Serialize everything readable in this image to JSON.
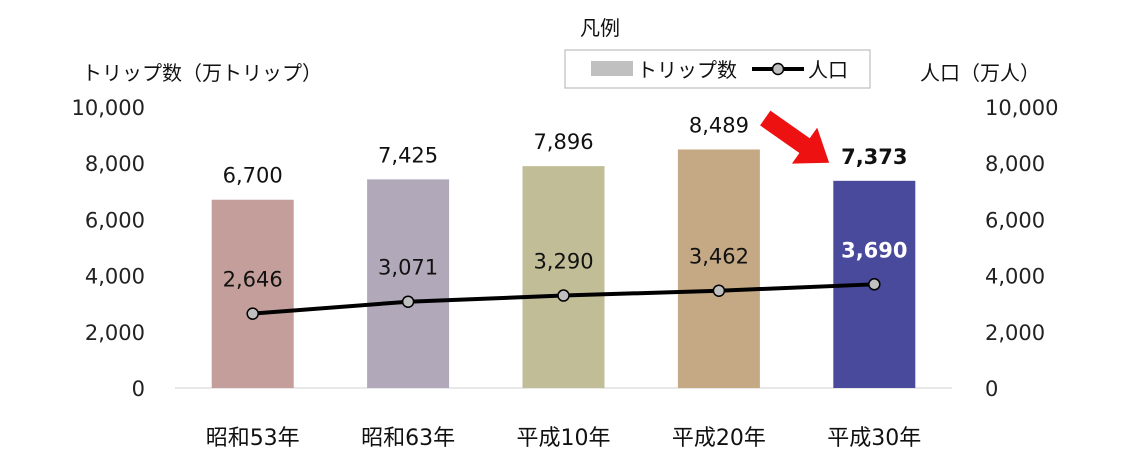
{
  "chart_data": {
    "type": "bar",
    "categories": [
      "昭和53年",
      "昭和63年",
      "平成10年",
      "平成20年",
      "平成30年"
    ],
    "series": [
      {
        "name": "トリップ数",
        "type": "bar",
        "axis": "left",
        "values": [
          6700,
          7425,
          7896,
          8489,
          7373
        ],
        "value_labels": [
          "6,700",
          "7,425",
          "7,896",
          "8,489",
          "7,373"
        ],
        "colors": [
          "#c49e9b",
          "#b1a9b9",
          "#c1be97",
          "#c5a984",
          "#4a4a9c"
        ]
      },
      {
        "name": "人口",
        "type": "line",
        "axis": "right",
        "values": [
          2646,
          3071,
          3290,
          3462,
          3690
        ],
        "value_labels": [
          "2,646",
          "3,071",
          "3,290",
          "3,462",
          "3,690"
        ],
        "color": "#000000"
      }
    ],
    "ylabel_left": "トリップ数（万トリップ）",
    "ylabel_right": "人口（万人）",
    "ylim_left": [
      0,
      10000
    ],
    "ylim_right": [
      0,
      10000
    ],
    "yticks_left": [
      "0",
      "2,000",
      "4,000",
      "6,000",
      "8,000",
      "10,000"
    ],
    "yticks_right": [
      "0",
      "2,000",
      "4,000",
      "6,000",
      "8,000",
      "10,000"
    ],
    "legend": {
      "title": "凡例",
      "placement": "top-right",
      "items": [
        "トリップ数",
        "人口"
      ],
      "bar_color": "#c0c0c0",
      "line_color": "#000000"
    },
    "highlight": {
      "category": "平成30年",
      "arrow_color": "#ee1111"
    },
    "grid": false
  }
}
